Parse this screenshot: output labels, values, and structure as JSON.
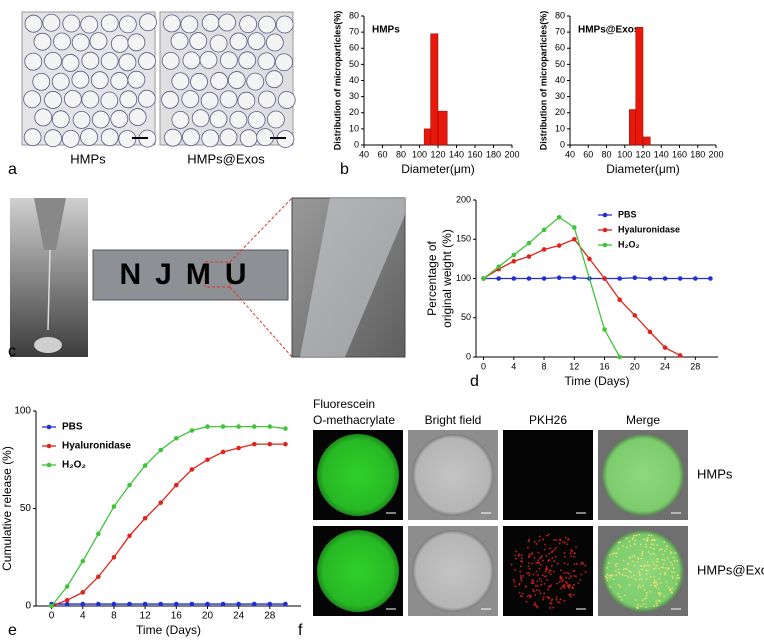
{
  "labels": {
    "panel_letters": [
      "a",
      "b",
      "c",
      "d",
      "e",
      "f"
    ],
    "a_captions": [
      "HMPs",
      "HMPs@Exos"
    ],
    "c_sample_text": "NJMU",
    "f_columns": [
      [
        "Fluorescein",
        "O-methacrylate"
      ],
      "Bright field",
      "PKH26",
      "Merge"
    ],
    "f_rows": [
      "HMPs",
      "HMPs@Exos"
    ]
  },
  "chart_data": [
    {
      "type": "histogram",
      "title": "HMPs",
      "xlabel": "Diameter(μm)",
      "ylabel": "Distribution of microparticles(%)",
      "bins": [
        105,
        112,
        120,
        130
      ],
      "values": [
        10,
        69,
        21
      ],
      "color": "#e8180c",
      "xlim": [
        40,
        200
      ],
      "xticks": [
        40,
        60,
        80,
        100,
        120,
        140,
        160,
        180,
        200
      ],
      "ylim": [
        0,
        80
      ],
      "yticks": [
        0,
        10,
        20,
        30,
        40,
        50,
        60,
        70,
        80
      ]
    },
    {
      "type": "histogram",
      "title": "HMPs@Exos",
      "xlabel": "Diameter(μm)",
      "ylabel": "Distribution of microparticles(%)",
      "bins": [
        105,
        112,
        120,
        128
      ],
      "values": [
        22,
        73,
        5
      ],
      "color": "#e8180c",
      "xlim": [
        40,
        200
      ],
      "xticks": [
        40,
        60,
        80,
        100,
        120,
        140,
        160,
        180,
        200
      ],
      "ylim": [
        0,
        80
      ],
      "yticks": [
        0,
        10,
        20,
        30,
        40,
        50,
        60,
        70,
        80
      ]
    },
    {
      "type": "line",
      "xlabel": "Time (Days)",
      "ylabel": [
        "Percentage of",
        "original weight (%)"
      ],
      "xlim": [
        -1,
        31
      ],
      "xticks": [
        0,
        4,
        8,
        12,
        16,
        20,
        24,
        28
      ],
      "ylim": [
        0,
        200
      ],
      "yticks": [
        0,
        50,
        100,
        150,
        200
      ],
      "series": [
        {
          "name": "PBS",
          "color": "#1f2fd0",
          "x": [
            0,
            2,
            4,
            6,
            8,
            10,
            12,
            14,
            16,
            18,
            20,
            22,
            24,
            26,
            28,
            30
          ],
          "values": [
            100,
            100,
            100,
            100,
            100,
            101,
            101,
            100,
            100,
            100,
            101,
            100,
            100,
            100,
            100,
            100
          ]
        },
        {
          "name": "Hyaluronidase",
          "color": "#e0241b",
          "x": [
            0,
            2,
            4,
            6,
            8,
            10,
            12,
            14,
            16,
            18,
            20,
            22,
            24,
            26
          ],
          "values": [
            100,
            112,
            122,
            128,
            137,
            142,
            150,
            125,
            100,
            73,
            53,
            32,
            12,
            2
          ]
        },
        {
          "name": "H₂O₂",
          "color": "#3fc43a",
          "x": [
            0,
            2,
            4,
            6,
            8,
            10,
            12,
            16,
            18
          ],
          "values": [
            100,
            115,
            130,
            145,
            162,
            178,
            165,
            35,
            0
          ]
        }
      ]
    },
    {
      "type": "line",
      "xlabel": "Time (Days)",
      "ylabel": "Cumulative release (%)",
      "xlim": [
        -2,
        32
      ],
      "xticks": [
        0,
        4,
        8,
        12,
        16,
        20,
        24,
        28
      ],
      "ylim": [
        0,
        100
      ],
      "yticks": [
        0,
        50,
        100
      ],
      "series": [
        {
          "name": "PBS",
          "color": "#1f2fd0",
          "x": [
            0,
            2,
            4,
            6,
            8,
            10,
            12,
            14,
            16,
            18,
            20,
            22,
            24,
            26,
            28,
            30
          ],
          "values": [
            1,
            1,
            1,
            1,
            1,
            1,
            1,
            1,
            1,
            1,
            1,
            1,
            1,
            1,
            1,
            1
          ]
        },
        {
          "name": "Hyaluronidase",
          "color": "#e0241b",
          "x": [
            0,
            2,
            4,
            6,
            8,
            10,
            12,
            14,
            16,
            18,
            20,
            22,
            24,
            26,
            28,
            30
          ],
          "values": [
            0,
            3,
            7,
            15,
            25,
            36,
            45,
            53,
            62,
            70,
            75,
            79,
            81,
            83,
            83,
            83
          ]
        },
        {
          "name": "H₂O₂",
          "color": "#3fc43a",
          "x": [
            0,
            2,
            4,
            6,
            8,
            10,
            12,
            14,
            16,
            18,
            20,
            22,
            24,
            26,
            28,
            30
          ],
          "values": [
            0,
            10,
            23,
            37,
            51,
            62,
            72,
            80,
            86,
            90,
            92,
            92,
            92,
            92,
            92,
            91
          ]
        }
      ]
    }
  ]
}
